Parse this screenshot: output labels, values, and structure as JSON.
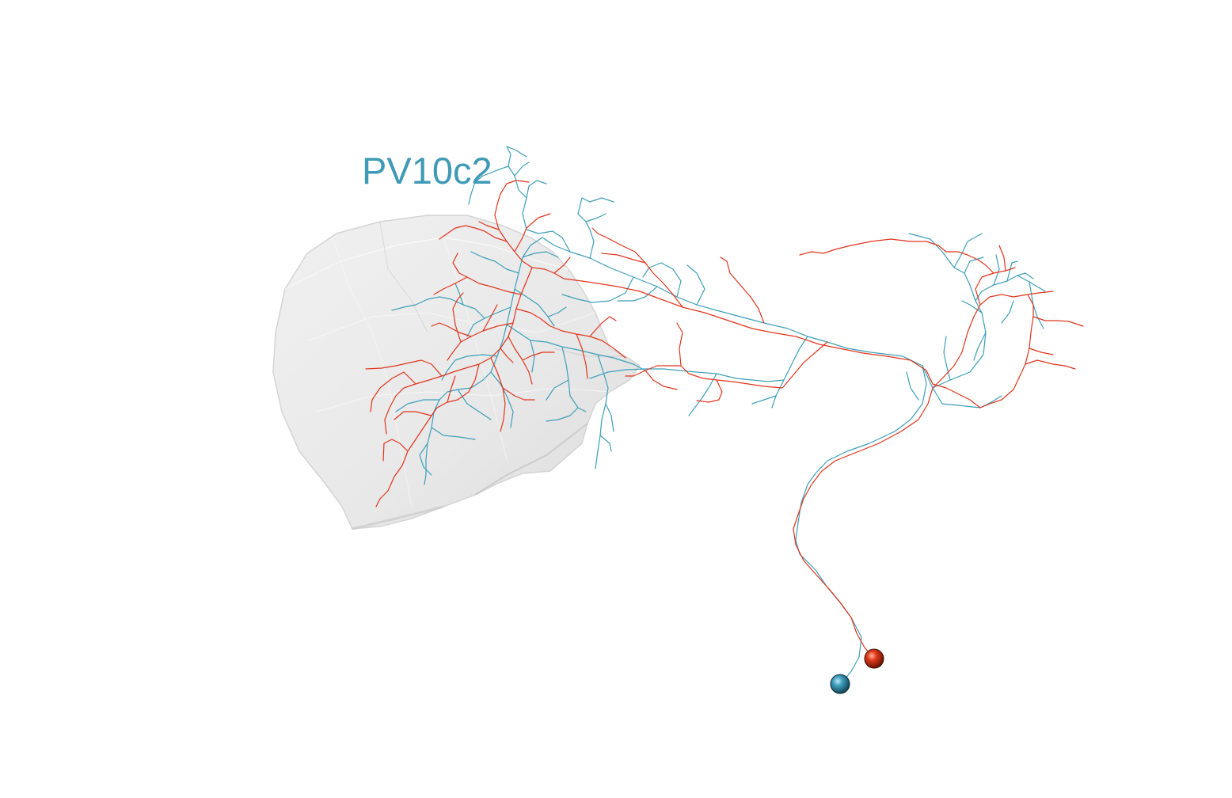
{
  "label": {
    "text": "PV10c2",
    "color": "#3f9ab5"
  },
  "scene": {
    "background": "#ffffff",
    "neuropil_color": "#e8e8e8",
    "neurons": [
      {
        "name": "neuron-cyan",
        "color": "#3d9fb8"
      },
      {
        "name": "neuron-red",
        "color": "#e0341c"
      }
    ]
  }
}
